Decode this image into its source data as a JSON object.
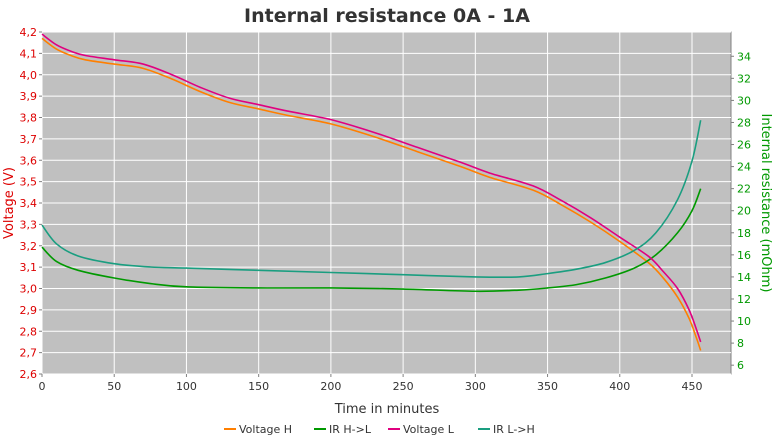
{
  "chart_data": {
    "type": "line",
    "title": "Internal resistance  0A - 1A",
    "xlabel": "Time in minutes",
    "ylabel_left": "Voltage (V)",
    "ylabel_right": "Internal resistance (mOhm)",
    "xlim": [
      0,
      477
    ],
    "ylim_left": [
      2.6,
      4.2
    ],
    "ylim_right": [
      5.2,
      36.2
    ],
    "x_ticks": [
      "0",
      "50",
      "100",
      "150",
      "200",
      "250",
      "300",
      "350",
      "400",
      "450"
    ],
    "y_left_ticks": [
      "2,6",
      "2,7",
      "2,8",
      "2,9",
      "3,0",
      "3,1",
      "3,2",
      "3,3",
      "3,4",
      "3,5",
      "3,6",
      "3,7",
      "3,8",
      "3,9",
      "4,0",
      "4,1",
      "4,2"
    ],
    "y_right_ticks": [
      "6",
      "8",
      "10",
      "12",
      "14",
      "16",
      "18",
      "20",
      "22",
      "24",
      "26",
      "28",
      "30",
      "32",
      "34"
    ],
    "grid": true,
    "plot_background": "#c0c0c0",
    "left_axis_color": "#dd0000",
    "right_axis_color": "#009900",
    "series": [
      {
        "name": "Voltage H",
        "axis": "left",
        "color": "#ff7f00",
        "x": [
          0,
          10,
          20,
          30,
          50,
          70,
          90,
          110,
          130,
          150,
          170,
          200,
          230,
          260,
          290,
          310,
          340,
          360,
          380,
          400,
          420,
          430,
          440,
          448,
          453,
          456
        ],
        "y": [
          4.17,
          4.12,
          4.09,
          4.07,
          4.05,
          4.03,
          3.98,
          3.92,
          3.87,
          3.84,
          3.81,
          3.77,
          3.71,
          3.64,
          3.57,
          3.52,
          3.46,
          3.39,
          3.31,
          3.22,
          3.12,
          3.05,
          2.96,
          2.86,
          2.77,
          2.71
        ]
      },
      {
        "name": "IR H->L",
        "axis": "right",
        "color": "#009900",
        "x": [
          0,
          10,
          25,
          50,
          75,
          100,
          150,
          200,
          250,
          300,
          330,
          350,
          370,
          390,
          410,
          425,
          440,
          450,
          456
        ],
        "y": [
          16.7,
          15.4,
          14.6,
          13.9,
          13.4,
          13.1,
          13.0,
          13.0,
          12.9,
          12.7,
          12.8,
          13.0,
          13.3,
          13.9,
          14.8,
          16.0,
          18.0,
          20.0,
          22.0
        ]
      },
      {
        "name": "Voltage L",
        "axis": "left",
        "color": "#e0007f",
        "x": [
          0,
          10,
          20,
          30,
          50,
          70,
          90,
          110,
          130,
          150,
          170,
          200,
          230,
          260,
          290,
          310,
          340,
          360,
          380,
          400,
          420,
          430,
          440,
          448,
          453,
          456
        ],
        "y": [
          4.19,
          4.14,
          4.11,
          4.09,
          4.07,
          4.05,
          4.0,
          3.94,
          3.89,
          3.86,
          3.83,
          3.79,
          3.73,
          3.66,
          3.59,
          3.54,
          3.48,
          3.41,
          3.33,
          3.24,
          3.15,
          3.08,
          3.0,
          2.9,
          2.81,
          2.75
        ]
      },
      {
        "name": "IR L->H",
        "axis": "right",
        "color": "#1a9e80",
        "x": [
          0,
          10,
          25,
          50,
          75,
          100,
          150,
          200,
          250,
          300,
          330,
          350,
          370,
          390,
          410,
          425,
          440,
          450,
          456
        ],
        "y": [
          18.7,
          17.0,
          15.9,
          15.2,
          14.9,
          14.8,
          14.6,
          14.4,
          14.2,
          14.0,
          14.0,
          14.3,
          14.7,
          15.3,
          16.4,
          18.0,
          21.0,
          24.5,
          28.2
        ]
      }
    ],
    "legend": {
      "placement": "bottom",
      "entries": [
        "Voltage H",
        "IR H->L",
        "Voltage L",
        "IR L->H"
      ]
    }
  }
}
